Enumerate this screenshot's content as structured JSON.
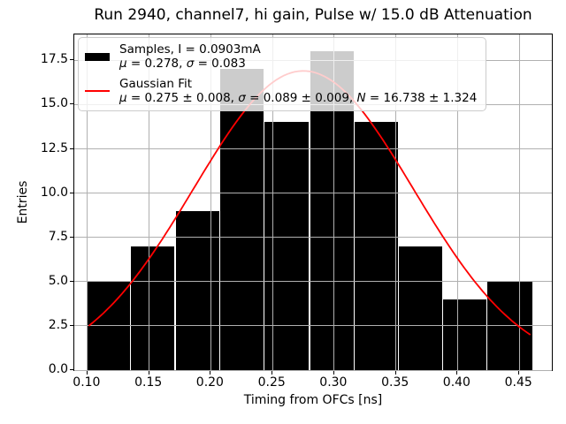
{
  "title": "Run 2940, channel7, hi gain, Pulse w/ 15.0 dB Attenuation",
  "x_axis": {
    "label": "Timing from OFCs [ns]",
    "tick_labels": [
      "0.10",
      "0.15",
      "0.20",
      "0.25",
      "0.30",
      "0.35",
      "0.40",
      "0.45"
    ],
    "tick_values": [
      0.1,
      0.15,
      0.2,
      0.25,
      0.3,
      0.35,
      0.4,
      0.45
    ]
  },
  "y_axis": {
    "label": "Entries",
    "tick_labels": [
      "0.0",
      "2.5",
      "5.0",
      "7.5",
      "10.0",
      "12.5",
      "15.0",
      "17.5"
    ],
    "tick_values": [
      0,
      2.5,
      5,
      7.5,
      10,
      12.5,
      15,
      17.5
    ]
  },
  "legend": {
    "entries": [
      {
        "swatch": "black-filled-box",
        "lines": [
          "Samples, I = 0.0903mA",
          "μ = 0.278, σ = 0.083"
        ]
      },
      {
        "swatch": "red-line",
        "lines": [
          "Gaussian Fit",
          "μ = 0.275 ± 0.008, σ = 0.089 ± 0.009, N = 16.738 ± 1.324"
        ]
      }
    ]
  },
  "chart_data": {
    "type": "bar",
    "subtype": "histogram",
    "title": "Run 2940, channel7, hi gain, Pulse w/ 15.0 dB Attenuation",
    "xlabel": "Timing from OFCs [ns]",
    "ylabel": "Entries",
    "bin_edges": [
      0.099,
      0.135,
      0.171,
      0.207,
      0.243,
      0.28,
      0.316,
      0.352,
      0.388,
      0.424,
      0.461
    ],
    "counts": [
      5,
      7,
      9,
      17,
      14,
      18,
      14,
      7,
      4,
      5
    ],
    "series_label": "Samples, I = 0.0903mA",
    "sample_stats": {
      "mu": 0.278,
      "sigma": 0.083
    },
    "fit": {
      "label": "Gaussian Fit",
      "mu": 0.275,
      "mu_err": 0.008,
      "sigma": 0.089,
      "sigma_err": 0.009,
      "N": 16.738,
      "N_err": 1.324
    },
    "curve": {
      "mu": 0.275,
      "sigma": 0.089,
      "amplitude": 16.9,
      "x_start": 0.101,
      "x_end": 0.459
    },
    "xlim": [
      0.0893,
      0.4764
    ],
    "ylim": [
      0,
      18.96
    ],
    "grid": true,
    "legend_position": "upper left"
  },
  "colors": {
    "bars": "#000000",
    "fit_line": "#ff0000",
    "grid": "#b0b0b0",
    "legend_border": "#cccccc",
    "text": "#000000"
  }
}
